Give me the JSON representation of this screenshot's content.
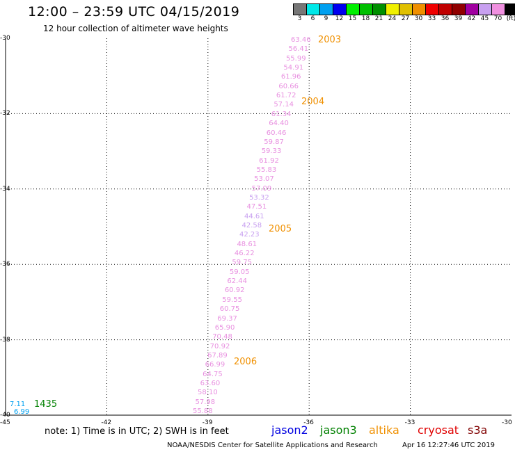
{
  "header": {
    "title": "12:00 – 23:59 UTC 04/15/2019",
    "subtitle": "12 hour collection of altimeter wave heights"
  },
  "colorbar": {
    "colors": [
      "#777777",
      "#00e8e8",
      "#00a0f0",
      "#0000f0",
      "#00f000",
      "#00c000",
      "#009000",
      "#f0f000",
      "#e0c000",
      "#f09000",
      "#f00000",
      "#c00000",
      "#900000",
      "#a000a0",
      "#c8a0f0",
      "#f090e0",
      "#000000"
    ],
    "labels": [
      "3",
      "6",
      "9",
      "12",
      "15",
      "18",
      "21",
      "24",
      "27",
      "30",
      "33",
      "36",
      "39",
      "42",
      "45",
      "70",
      "(ft)"
    ]
  },
  "map": {
    "lat_labels": [
      "-30",
      "-32",
      "-34",
      "-36",
      "-38",
      "-40"
    ],
    "lon_labels": [
      "-45",
      "-42",
      "-39",
      "-36",
      "-33",
      "-30"
    ]
  },
  "track": {
    "color": "#e890e0",
    "light_color": "#c8a0f0",
    "values": [
      "63.46",
      "56.41",
      "55.99",
      "54.91",
      "61.96",
      "60.66",
      "61.72",
      "57.14",
      "61.34",
      "64.40",
      "60.46",
      "59.87",
      "59.33",
      "61.92",
      "55.83",
      "53.07",
      "57.09",
      "53.32",
      "47.51",
      "44.61",
      "42.58",
      "42.23",
      "48.61",
      "46.22",
      "59.75",
      "59.05",
      "62.44",
      "60.92",
      "59.55",
      "60.75",
      "69.37",
      "65.90",
      "70.48",
      "70.92",
      "67.89",
      "66.99",
      "64.75",
      "63.60",
      "58.10",
      "57.98",
      "55.88"
    ],
    "times": [
      "2003",
      "2004",
      "2005",
      "2006"
    ],
    "time_color": "#f09000"
  },
  "corner": {
    "values": [
      "7.11",
      "6.99"
    ],
    "value_color": "#00a0f0",
    "time": "1435",
    "time_color": "#008000"
  },
  "footer": {
    "note": "note:  1) Time is in UTC; 2) SWH is in feet",
    "satellites": [
      {
        "name": "jason2",
        "color": "#0000e0"
      },
      {
        "name": "jason3",
        "color": "#008000"
      },
      {
        "name": "altika",
        "color": "#f09000"
      },
      {
        "name": "cryosat",
        "color": "#e00000"
      },
      {
        "name": "s3a",
        "color": "#800000"
      }
    ],
    "credit": "NOAA/NESDIS Center for Satellite Applications and Research",
    "timestamp": "Apr 16 12:27:46 UTC 2019"
  }
}
